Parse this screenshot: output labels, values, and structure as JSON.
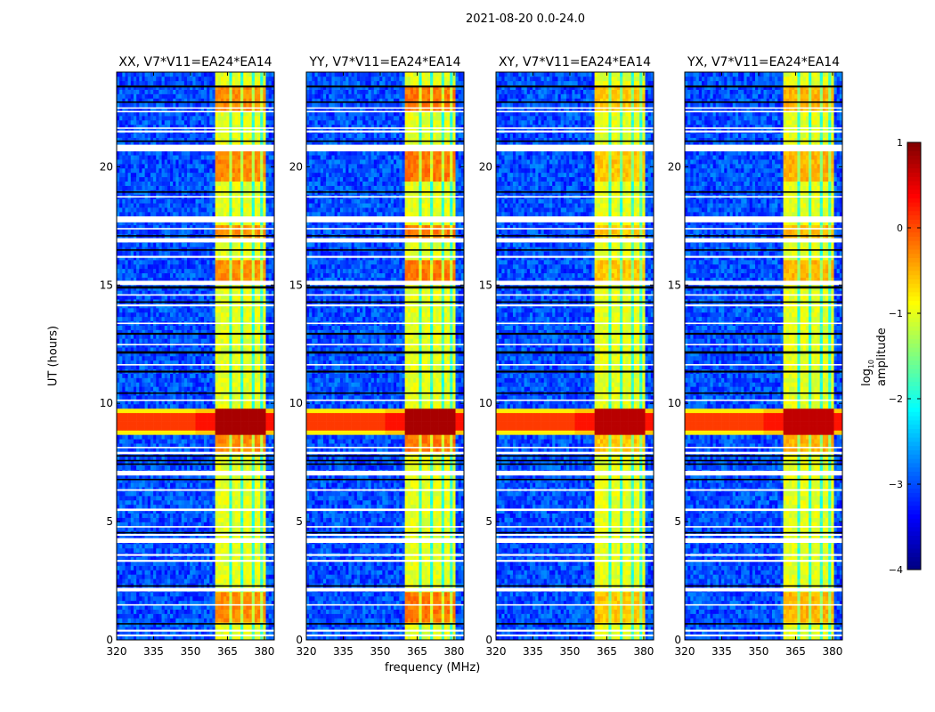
{
  "suptitle": "2021-08-20 0.0-24.0",
  "chart_data": {
    "type": "heatmap",
    "xlabel": "frequency (MHz)",
    "ylabel": "UT (hours)",
    "xlim": [
      320,
      384
    ],
    "ylim": [
      0,
      24
    ],
    "xticks": [
      "320",
      "335",
      "350",
      "365",
      "380"
    ],
    "xtick_values": [
      320,
      335,
      350,
      365,
      380
    ],
    "yticks": [
      "0",
      "5",
      "10",
      "15",
      "20"
    ],
    "ytick_values": [
      0,
      5,
      10,
      15,
      20
    ],
    "colorbar": {
      "label_main": "log",
      "label_sub": "10",
      "label_rest": " amplitude",
      "range": [
        -4,
        1
      ],
      "colormap": "jet",
      "ticks": [
        "1",
        "0",
        "−1",
        "−2",
        "−3",
        "−4"
      ],
      "tick_values": [
        1,
        0,
        -1,
        -2,
        -3,
        -4
      ]
    },
    "model": {
      "background_level": -3.0,
      "band_range_mhz": [
        360.5,
        380
      ],
      "band_level": -1.0,
      "band_dark_channels_mhz": [
        366.5,
        371,
        375.5,
        378.5
      ],
      "strong_rfi_hours": [
        8.6,
        9.8
      ],
      "strong_rfi_level_in_band": 0.8,
      "strong_rfi_level_outside": 0.1,
      "bright_block_hours": [
        [
          0.7,
          2.0
        ],
        [
          8.0,
          8.6
        ],
        [
          15.2,
          16.0
        ],
        [
          17.0,
          17.6
        ],
        [
          19.3,
          20.9
        ],
        [
          22.4,
          23.5
        ]
      ]
    },
    "flags": [
      {
        "t": 0.15,
        "dur": 0.08,
        "color": "white"
      },
      {
        "t": 0.35,
        "dur": 0.08,
        "color": "white"
      },
      {
        "t": 0.65,
        "dur": 0.06,
        "color": "black"
      },
      {
        "t": 1.45,
        "dur": 0.06,
        "color": "white"
      },
      {
        "t": 2.05,
        "dur": 0.15,
        "color": "white"
      },
      {
        "t": 2.25,
        "dur": 0.06,
        "color": "black"
      },
      {
        "t": 3.3,
        "dur": 0.08,
        "color": "white"
      },
      {
        "t": 3.55,
        "dur": 0.08,
        "color": "white"
      },
      {
        "t": 4.1,
        "dur": 0.2,
        "color": "white"
      },
      {
        "t": 4.4,
        "dur": 0.08,
        "color": "white"
      },
      {
        "t": 4.5,
        "dur": 0.06,
        "color": "black"
      },
      {
        "t": 4.75,
        "dur": 0.06,
        "color": "white"
      },
      {
        "t": 5.45,
        "dur": 0.1,
        "color": "white"
      },
      {
        "t": 6.3,
        "dur": 0.07,
        "color": "white"
      },
      {
        "t": 6.75,
        "dur": 0.06,
        "color": "black"
      },
      {
        "t": 6.95,
        "dur": 0.2,
        "color": "white"
      },
      {
        "t": 7.4,
        "dur": 0.06,
        "color": "black"
      },
      {
        "t": 7.55,
        "dur": 0.06,
        "color": "black"
      },
      {
        "t": 7.75,
        "dur": 0.06,
        "color": "black"
      },
      {
        "t": 7.85,
        "dur": 0.1,
        "color": "white"
      },
      {
        "t": 8.1,
        "dur": 0.06,
        "color": "white"
      },
      {
        "t": 10.1,
        "dur": 0.06,
        "color": "white"
      },
      {
        "t": 10.4,
        "dur": 0.06,
        "color": "black"
      },
      {
        "t": 11.3,
        "dur": 0.08,
        "color": "black"
      },
      {
        "t": 11.6,
        "dur": 0.06,
        "color": "white"
      },
      {
        "t": 12.1,
        "dur": 0.1,
        "color": "black"
      },
      {
        "t": 12.45,
        "dur": 0.06,
        "color": "white"
      },
      {
        "t": 12.9,
        "dur": 0.08,
        "color": "black"
      },
      {
        "t": 13.35,
        "dur": 0.06,
        "color": "white"
      },
      {
        "t": 14.1,
        "dur": 0.08,
        "color": "white"
      },
      {
        "t": 14.25,
        "dur": 0.06,
        "color": "black"
      },
      {
        "t": 14.55,
        "dur": 0.06,
        "color": "white"
      },
      {
        "t": 14.85,
        "dur": 0.1,
        "color": "black"
      },
      {
        "t": 15.0,
        "dur": 0.18,
        "color": "white"
      },
      {
        "t": 16.15,
        "dur": 0.08,
        "color": "white"
      },
      {
        "t": 16.45,
        "dur": 0.06,
        "color": "black"
      },
      {
        "t": 16.8,
        "dur": 0.18,
        "color": "white"
      },
      {
        "t": 17.05,
        "dur": 0.06,
        "color": "black"
      },
      {
        "t": 17.35,
        "dur": 0.06,
        "color": "white"
      },
      {
        "t": 17.65,
        "dur": 0.25,
        "color": "white"
      },
      {
        "t": 18.7,
        "dur": 0.06,
        "color": "white"
      },
      {
        "t": 18.9,
        "dur": 0.06,
        "color": "black"
      },
      {
        "t": 20.65,
        "dur": 0.28,
        "color": "white"
      },
      {
        "t": 21.05,
        "dur": 0.06,
        "color": "black"
      },
      {
        "t": 21.45,
        "dur": 0.08,
        "color": "white"
      },
      {
        "t": 21.6,
        "dur": 0.06,
        "color": "white"
      },
      {
        "t": 22.3,
        "dur": 0.06,
        "color": "white"
      },
      {
        "t": 22.45,
        "dur": 0.06,
        "color": "white"
      },
      {
        "t": 22.7,
        "dur": 0.06,
        "color": "black"
      },
      {
        "t": 23.35,
        "dur": 0.08,
        "color": "black"
      }
    ],
    "panels": [
      {
        "title": "XX, V7*V11=EA24*EA14",
        "rfi_scale": 1.0,
        "block_level": -0.3
      },
      {
        "title": "YY, V7*V11=EA24*EA14",
        "rfi_scale": 1.0,
        "block_level": -0.2
      },
      {
        "title": "XY, V7*V11=EA24*EA14",
        "rfi_scale": 0.9,
        "block_level": -0.6
      },
      {
        "title": "YX, V7*V11=EA24*EA14",
        "rfi_scale": 0.85,
        "block_level": -0.5
      }
    ]
  }
}
